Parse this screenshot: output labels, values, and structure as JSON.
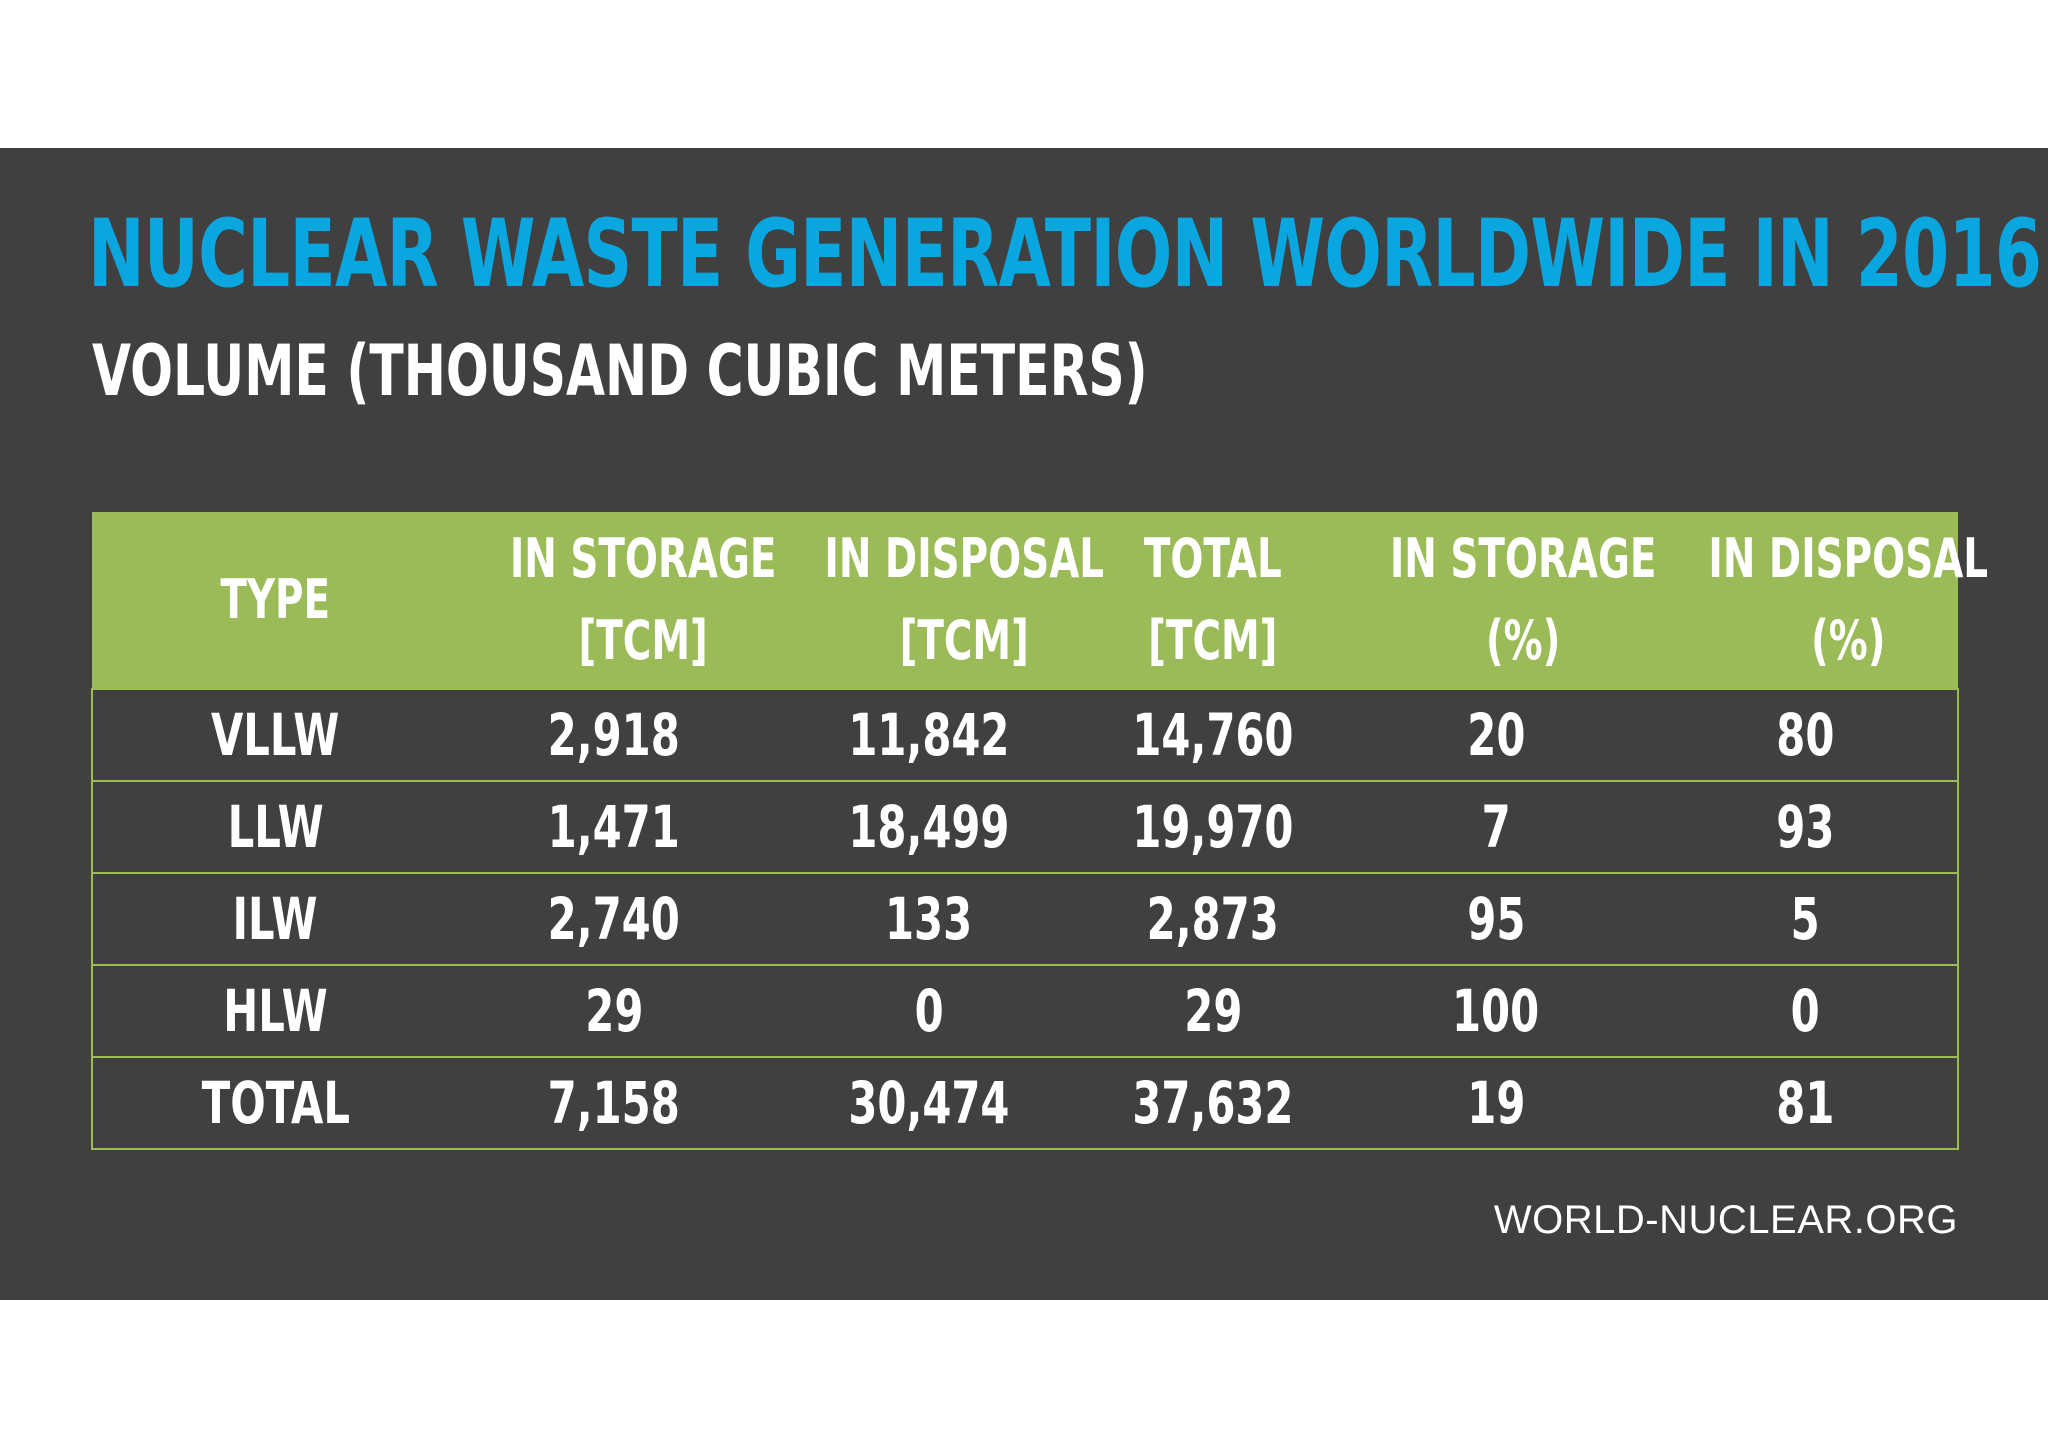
{
  "chart_data": {
    "type": "table",
    "title": "NUCLEAR WASTE GENERATION WORLDWIDE IN 2016",
    "subtitle": "VOLUME (THOUSAND CUBIC METERS)",
    "columns": [
      {
        "line1": "TYPE",
        "line2": ""
      },
      {
        "line1": "IN STORAGE",
        "line2": "[TCM]"
      },
      {
        "line1": "IN DISPOSAL",
        "line2": "[TCM]"
      },
      {
        "line1": "TOTAL",
        "line2": "[TCM]"
      },
      {
        "line1": "IN STORAGE",
        "line2": "(%)"
      },
      {
        "line1": "IN DISPOSAL",
        "line2": "(%)"
      }
    ],
    "rows": [
      [
        "VLLW",
        "2,918",
        "11,842",
        "14,760",
        "20",
        "80"
      ],
      [
        "LLW",
        "1,471",
        "18,499",
        "19,970",
        "7",
        "93"
      ],
      [
        "ILW",
        "2,740",
        "133",
        "2,873",
        "95",
        "5"
      ],
      [
        "HLW",
        "29",
        "0",
        "29",
        "100",
        "0"
      ],
      [
        "TOTAL",
        "7,158",
        "30,474",
        "37,632",
        "19",
        "81"
      ]
    ],
    "source": "WORLD-NUCLEAR.ORG"
  },
  "colors": {
    "background": "#404040",
    "title": "#0aa6e0",
    "header": "#9bbb59",
    "text": "#ffffff"
  }
}
